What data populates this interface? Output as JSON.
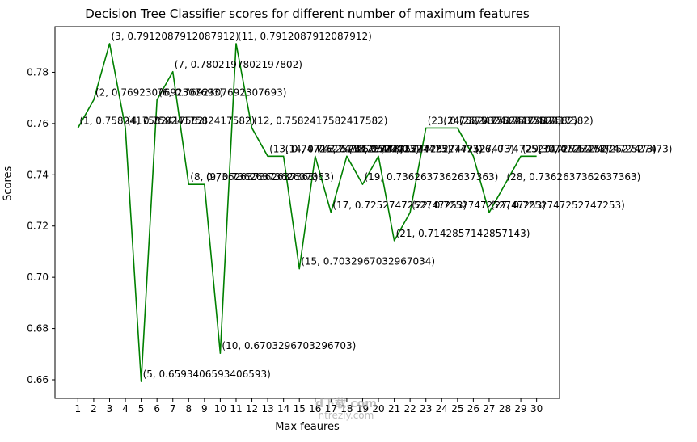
{
  "chart_data": {
    "type": "line",
    "title": "Decision Tree Classifier scores for different number of maximum features",
    "xlabel": "Max feaures",
    "ylabel": "Scores",
    "x": [
      1,
      2,
      3,
      4,
      5,
      6,
      7,
      8,
      9,
      10,
      11,
      12,
      13,
      14,
      15,
      16,
      17,
      18,
      19,
      20,
      21,
      22,
      23,
      24,
      25,
      26,
      27,
      28,
      29,
      30
    ],
    "values": [
      0.7582417582417582,
      0.7692307692307693,
      0.7912087912087912,
      0.7582417582417582,
      0.6593406593406593,
      0.7692307692307693,
      0.7802197802197802,
      0.7362637362637363,
      0.7362637362637363,
      0.6703296703296703,
      0.7912087912087912,
      0.7582417582417582,
      0.7472527472527473,
      0.7472527472527473,
      0.7032967032967034,
      0.7472527472527473,
      0.7252747252747253,
      0.7472527472527473,
      0.7362637362637363,
      0.7472527472527473,
      0.7142857142857143,
      0.7252747252747253,
      0.7582417582417582,
      0.7582417582417582,
      0.7582417582417582,
      0.7472527472527473,
      0.7252747252747253,
      0.7362637362637363,
      0.7472527472527473,
      0.7472527472527473
    ],
    "point_annotation_format": "(x, y)",
    "line_color": "#008000",
    "annotation_color": "#000000",
    "xlim": [
      -0.45,
      31.45
    ],
    "ylim": [
      0.6527472527472526,
      0.7978021978021979
    ],
    "xticks": [
      1,
      2,
      3,
      4,
      5,
      6,
      7,
      8,
      9,
      10,
      11,
      12,
      13,
      14,
      15,
      16,
      17,
      18,
      19,
      20,
      21,
      22,
      23,
      24,
      25,
      26,
      27,
      28,
      29,
      30
    ],
    "xtick_labels": [
      "1",
      "2",
      "3",
      "4",
      "5",
      "6",
      "7",
      "8",
      "9",
      "10",
      "11",
      "12",
      "13",
      "14",
      "15",
      "16",
      "17",
      "18",
      "19",
      "20",
      "21",
      "22",
      "23",
      "24",
      "25",
      "26",
      "27",
      "28",
      "29",
      "30"
    ],
    "yticks": [
      0.66,
      0.68,
      0.7,
      0.72,
      0.74,
      0.76,
      0.78
    ],
    "ytick_labels": [
      "0.66",
      "0.68",
      "0.70",
      "0.72",
      "0.74",
      "0.76",
      "0.78"
    ],
    "grid": false,
    "legend": null
  },
  "watermark": {
    "line1": "d下载.com",
    "line2": "ntrezly.com"
  }
}
